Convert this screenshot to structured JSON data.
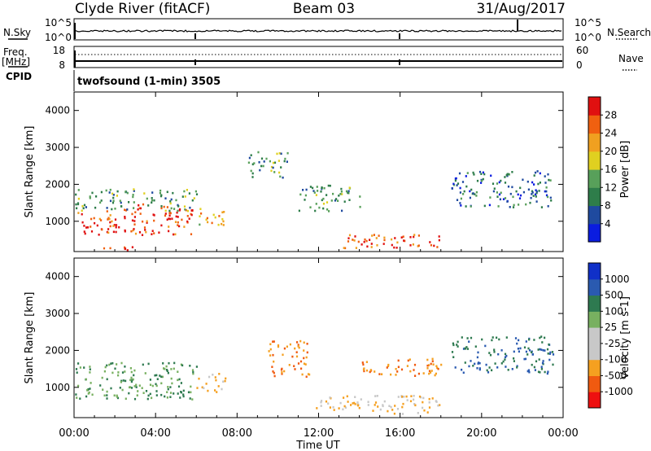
{
  "header": {
    "station": "Clyde River (fitACF)",
    "beam": "Beam 03",
    "date": "31/Aug/2017"
  },
  "aux_panels": {
    "nsky_label": "N.Sky",
    "nsky_top": "10^5",
    "nsky_bottom": "10^0",
    "nsearch_label": "N.Search",
    "nsearch_top": "10^5",
    "nsearch_bottom": "10^0",
    "freq_label": "Freq.",
    "freq_unit": "[MHz]",
    "freq_top": "18",
    "freq_bottom": "8",
    "nave_label": "Nave",
    "nave_top": "60",
    "nave_bottom": "0",
    "cpid_label": "CPID",
    "cpid_value": "twofsound (1-min) 3505"
  },
  "colors": {
    "power": [
      "#0a1ce0",
      "#1f4a9f",
      "#2e7d4a",
      "#58a05a",
      "#e0d020",
      "#f0a020",
      "#f06010",
      "#e01010"
    ],
    "velocity": [
      "#ee1010",
      "#f05a10",
      "#f5a020",
      "#c8c8c8",
      "#c8c8c8",
      "#78b060",
      "#2e7a50",
      "#2a5ab0",
      "#1030c8"
    ]
  },
  "chart_data": [
    {
      "type": "heatmap",
      "panel": "power",
      "ylabel": "Slant Range [km]",
      "yticks": [
        "1000",
        "2000",
        "3000",
        "4000"
      ],
      "ylim": [
        180,
        4500
      ],
      "xlim": [
        0,
        24
      ],
      "colorbar_label": "Power [dB]",
      "colorbar_ticks": [
        "4",
        "8",
        "12",
        "16",
        "20",
        "24",
        "28"
      ],
      "colorbar_range": [
        0,
        32
      ],
      "regions": [
        {
          "t0": 0.0,
          "t1": 2.0,
          "r0": 600,
          "r1": 1300,
          "value": 28
        },
        {
          "t0": 2.0,
          "t1": 5.8,
          "r0": 650,
          "r1": 1500,
          "value": 28
        },
        {
          "t0": 0.0,
          "t1": 6.0,
          "r0": 1300,
          "r1": 1900,
          "value": 12
        },
        {
          "t0": 6.0,
          "t1": 7.4,
          "r0": 900,
          "r1": 1400,
          "value": 20
        },
        {
          "t0": 1.0,
          "t1": 3.0,
          "r0": 200,
          "r1": 350,
          "value": 28
        },
        {
          "t0": 13.2,
          "t1": 18.2,
          "r0": 300,
          "r1": 700,
          "value": 28
        },
        {
          "t0": 8.5,
          "t1": 10.5,
          "r0": 2200,
          "r1": 2900,
          "value": 12
        },
        {
          "t0": 18.5,
          "t1": 23.5,
          "r0": 1400,
          "r1": 2400,
          "value": 8
        },
        {
          "t0": 11.0,
          "t1": 14.0,
          "r0": 1300,
          "r1": 2000,
          "value": 12
        }
      ]
    },
    {
      "type": "heatmap",
      "panel": "velocity",
      "ylabel": "Slant Range [km]",
      "yticks": [
        "1000",
        "2000",
        "3000",
        "4000"
      ],
      "ylim": [
        180,
        4500
      ],
      "xlim": [
        0,
        24
      ],
      "xlabel": "Time UT",
      "xticks": [
        "00:00",
        "04:00",
        "08:00",
        "12:00",
        "16:00",
        "20:00",
        "00:00"
      ],
      "colorbar_label": "Velocity [m s-1]",
      "colorbar_ticks": [
        "-1000",
        "-500",
        "-100",
        "-25",
        "25",
        "100",
        "500",
        "1000"
      ],
      "regions": [
        {
          "t0": 0.0,
          "t1": 6.0,
          "r0": 700,
          "r1": 1700,
          "value": 100
        },
        {
          "t0": 6.0,
          "t1": 7.4,
          "r0": 900,
          "r1": 1400,
          "value": -100
        },
        {
          "t0": 9.5,
          "t1": 11.5,
          "r0": 1300,
          "r1": 2300,
          "value": -500
        },
        {
          "t0": 11.5,
          "t1": 18.0,
          "r0": 300,
          "r1": 800,
          "value": -100
        },
        {
          "t0": 18.5,
          "t1": 23.5,
          "r0": 1400,
          "r1": 2400,
          "value": 500
        },
        {
          "t0": 14.0,
          "t1": 18.0,
          "r0": 1300,
          "r1": 1800,
          "value": -500
        }
      ]
    }
  ]
}
